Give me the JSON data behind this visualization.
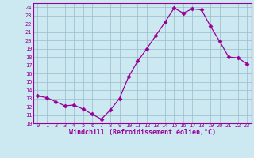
{
  "x": [
    0,
    1,
    2,
    3,
    4,
    5,
    6,
    7,
    8,
    9,
    10,
    11,
    12,
    13,
    14,
    15,
    16,
    17,
    18,
    19,
    20,
    21,
    22,
    23
  ],
  "y": [
    13.3,
    13.1,
    12.6,
    12.1,
    12.2,
    11.7,
    11.1,
    10.5,
    11.6,
    13.0,
    15.6,
    17.5,
    19.0,
    20.6,
    22.2,
    23.9,
    23.3,
    23.8,
    23.7,
    21.7,
    19.9,
    18.0,
    17.9,
    17.2
  ],
  "line_color": "#990099",
  "marker": "D",
  "marker_size": 2.5,
  "bg_color": "#cce8f0",
  "grid_color": "#99bbcc",
  "xlabel": "Windchill (Refroidissement éolien,°C)",
  "xlabel_color": "#990099",
  "tick_color": "#990099",
  "ylim": [
    10,
    24.5
  ],
  "xlim": [
    -0.5,
    23.5
  ],
  "yticks": [
    10,
    11,
    12,
    13,
    14,
    15,
    16,
    17,
    18,
    19,
    20,
    21,
    22,
    23,
    24
  ],
  "xticks": [
    0,
    1,
    2,
    3,
    4,
    5,
    6,
    7,
    8,
    9,
    10,
    11,
    12,
    13,
    14,
    15,
    16,
    17,
    18,
    19,
    20,
    21,
    22,
    23
  ]
}
